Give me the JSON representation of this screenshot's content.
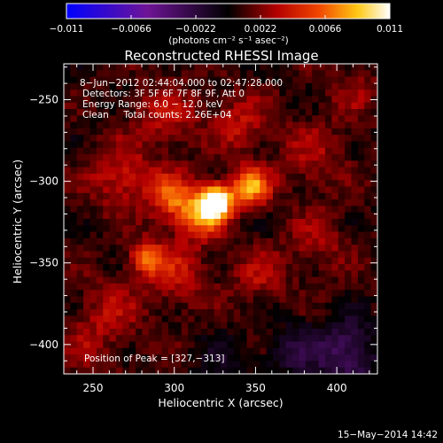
{
  "chart_data": {
    "type": "heatmap",
    "title": "Reconstructed RHESSI Image",
    "xlabel": "Heliocentric X (arcsec)",
    "ylabel": "Heliocentric Y (arcsec)",
    "xlim": [
      232,
      425
    ],
    "ylim": [
      -418,
      -228
    ],
    "x_ticks": [
      250,
      300,
      350,
      400
    ],
    "y_ticks": [
      -250,
      -300,
      -350,
      -400
    ],
    "x_tick_labels": [
      "250",
      "300",
      "350",
      "400"
    ],
    "y_tick_labels": [
      "−250",
      "−300",
      "−350",
      "−400"
    ],
    "colorbar": {
      "min": -0.011,
      "max": 0.011,
      "ticks": [
        -0.011,
        -0.0066,
        -0.0022,
        0.0022,
        0.0066,
        0.011
      ],
      "tick_labels": [
        "−0.011",
        "−0.0066",
        "−0.0022",
        "0.0022",
        "0.0066",
        "0.011"
      ],
      "units_label": "(photons cm⁻² s⁻¹ asec⁻²)"
    },
    "annotations": [
      "8−Jun−2012 02:44:04.000 to 02:47:28.000",
      "Detectors: 3F 5F 6F 7F 8F 9F, Att 0",
      "Energy Range: 6.0 − 12.0 keV",
      "Clean     Total counts: 2.26E+04"
    ],
    "peak_label": "Position of Peak = [327,−313]",
    "peak": [
      327,
      -313
    ],
    "sources": [
      {
        "x": 326,
        "y": -313,
        "value": 0.0125,
        "sigma": 7
      },
      {
        "x": 347,
        "y": -303,
        "value": 0.0075,
        "sigma": 8
      },
      {
        "x": 316,
        "y": -322,
        "value": 0.0055,
        "sigma": 9
      },
      {
        "x": 300,
        "y": -310,
        "value": 0.0055,
        "sigma": 10
      },
      {
        "x": 283,
        "y": -347,
        "value": 0.0048,
        "sigma": 7
      },
      {
        "x": 268,
        "y": -298,
        "value": 0.0032,
        "sigma": 14
      },
      {
        "x": 340,
        "y": -265,
        "value": 0.0028,
        "sigma": 12
      },
      {
        "x": 295,
        "y": -260,
        "value": 0.0025,
        "sigma": 14
      },
      {
        "x": 300,
        "y": -355,
        "value": 0.003,
        "sigma": 14
      },
      {
        "x": 260,
        "y": -380,
        "value": 0.0022,
        "sigma": 14
      },
      {
        "x": 388,
        "y": -338,
        "value": 0.0018,
        "sigma": 14
      },
      {
        "x": 385,
        "y": -285,
        "value": 0.002,
        "sigma": 15
      },
      {
        "x": 352,
        "y": -358,
        "value": 0.0022,
        "sigma": 12
      },
      {
        "x": 405,
        "y": -405,
        "value": -0.004,
        "sigma": 14
      },
      {
        "x": 372,
        "y": -405,
        "value": -0.0022,
        "sigma": 12
      },
      {
        "x": 330,
        "y": -412,
        "value": -0.0015,
        "sigma": 12
      },
      {
        "x": 245,
        "y": -405,
        "value": 0.0015,
        "sigma": 12
      },
      {
        "x": 410,
        "y": -245,
        "value": 0.0015,
        "sigma": 12
      }
    ],
    "background_level": 0.0008
  },
  "footer": {
    "date_stamp": "15−May−2014 14:42"
  }
}
